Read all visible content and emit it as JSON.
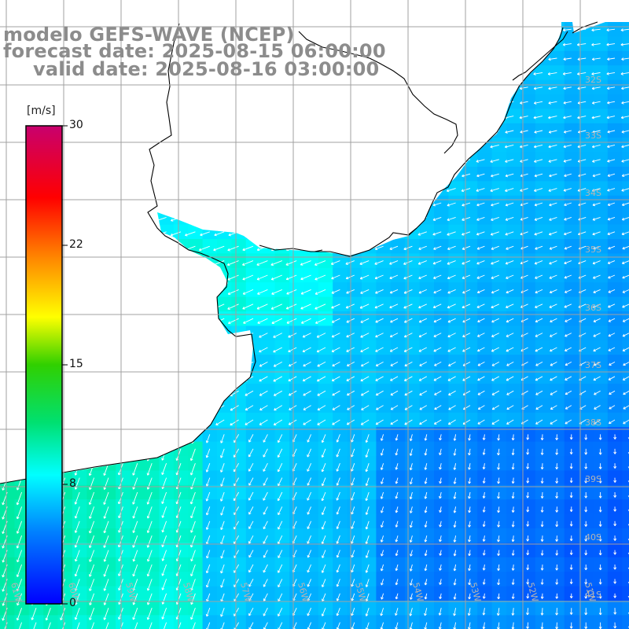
{
  "header": {
    "model": "modelo GEFS-WAVE (NCEP)",
    "forecast": "forecast date: 2025-08-15 06:00:00",
    "valid": "valid date: 2025-08-16 03:00:00"
  },
  "colorbar": {
    "units": "[m/s]",
    "labels": [
      "30",
      "22",
      "15",
      "8",
      "0"
    ],
    "values": [
      30,
      22,
      15,
      8,
      0
    ],
    "range": [
      0,
      30
    ],
    "colors": [
      "#0000ff",
      "#00a0ff",
      "#00ffff",
      "#00e060",
      "#00c000",
      "#ffff00",
      "#ff8c00",
      "#ff0000",
      "#c0006c"
    ]
  },
  "axes": {
    "lat_labels": [
      "32S",
      "33S",
      "34S",
      "35S",
      "36S",
      "37S",
      "38S",
      "39S",
      "40S",
      "41S"
    ],
    "lon_labels": [
      "61W",
      "60W",
      "59W",
      "58W",
      "57W",
      "56W",
      "55W",
      "54W",
      "53W",
      "52W",
      "51W"
    ]
  },
  "colors": {
    "ocean_low": "#1530ee",
    "ocean_high": "#2af09a",
    "arrows": "#ffffff",
    "coast": "#000000",
    "grid": "#a0a0a0",
    "title": "#8c8c8c"
  }
}
